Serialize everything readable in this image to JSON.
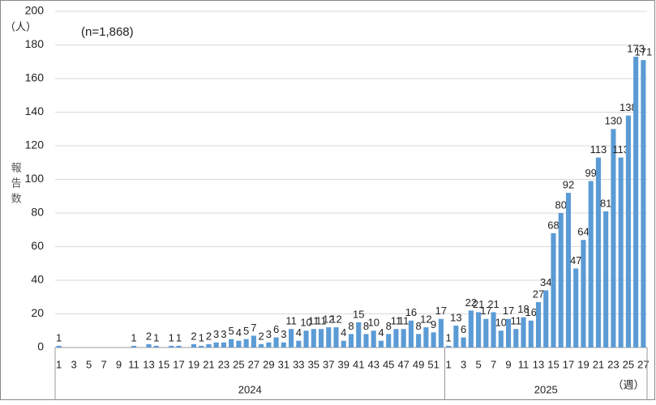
{
  "chart_data": {
    "type": "bar",
    "annotation": "(n=1,868)",
    "y_unit": "（人）",
    "ylabel": "報告数",
    "x_unit": "（週）",
    "color": "#5b9bd5",
    "grid": true,
    "ylim": [
      0,
      200
    ],
    "yticks": [
      0,
      20,
      40,
      60,
      80,
      100,
      120,
      140,
      160,
      180,
      200
    ],
    "groups": [
      {
        "name": "2024",
        "categories": [
          "1",
          null,
          "3",
          null,
          "5",
          null,
          "7",
          null,
          "9",
          null,
          "11",
          null,
          "13",
          null,
          "15",
          null,
          "17",
          null,
          "19",
          null,
          "21",
          null,
          "23",
          null,
          "25",
          null,
          "27",
          null,
          "29",
          null,
          "31",
          null,
          "33",
          null,
          "35",
          null,
          "37",
          null,
          "39",
          null,
          "41",
          null,
          "43",
          null,
          "45",
          null,
          "47",
          null,
          "49",
          null,
          "51",
          null
        ],
        "values": [
          1,
          0,
          0,
          0,
          0,
          0,
          0,
          0,
          0,
          0,
          1,
          0,
          2,
          1,
          0,
          1,
          1,
          0,
          2,
          1,
          2,
          3,
          3,
          5,
          4,
          5,
          7,
          2,
          3,
          6,
          3,
          11,
          4,
          10,
          11,
          11,
          12,
          12,
          4,
          8,
          15,
          8,
          10,
          4,
          8,
          11,
          11,
          16,
          8,
          12,
          9,
          17
        ]
      },
      {
        "name": "2025",
        "categories": [
          "1",
          null,
          "3",
          null,
          "5",
          null,
          "7",
          null,
          "9",
          null,
          "11",
          null,
          "13",
          null,
          "15",
          null,
          "17",
          null,
          "19",
          null,
          "21",
          null,
          "23",
          null,
          "25",
          null,
          "27"
        ],
        "values": [
          1,
          13,
          6,
          22,
          21,
          17,
          21,
          10,
          17,
          11,
          18,
          16,
          27,
          34,
          68,
          80,
          92,
          47,
          64,
          99,
          113,
          81,
          130,
          113,
          138,
          173,
          171
        ]
      }
    ]
  }
}
